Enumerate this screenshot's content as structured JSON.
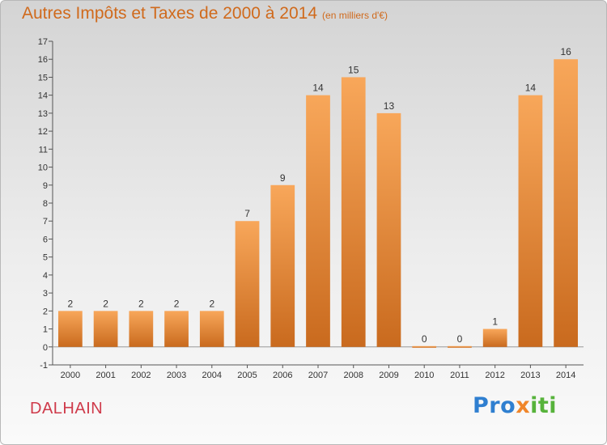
{
  "title": {
    "main": "Autres Impôts et Taxes de 2000 à 2014",
    "unit": "(en milliers d'€)"
  },
  "footer": {
    "town": "DALHAIN",
    "logo_letters": [
      {
        "char": "P",
        "color": "#2f7fd0"
      },
      {
        "char": "r",
        "color": "#2f7fd0"
      },
      {
        "char": "o",
        "color": "#2f7fd0"
      },
      {
        "char": "x",
        "color": "#f0862a"
      },
      {
        "char": "i",
        "color": "#57b33b"
      },
      {
        "char": "t",
        "color": "#57b33b"
      },
      {
        "char": "i",
        "color": "#57b33b"
      }
    ]
  },
  "chart_data": {
    "type": "bar",
    "categories": [
      "2000",
      "2001",
      "2002",
      "2003",
      "2004",
      "2005",
      "2006",
      "2007",
      "2008",
      "2009",
      "2010",
      "2011",
      "2012",
      "2013",
      "2014"
    ],
    "values": [
      2,
      2,
      2,
      2,
      2,
      7,
      9,
      14,
      15,
      13,
      0,
      0,
      1,
      14,
      16
    ],
    "data_labels": [
      "2",
      "2",
      "2",
      "2",
      "2",
      "7",
      "9",
      "14",
      "15",
      "13",
      "0",
      "0",
      "1",
      "14",
      "16"
    ],
    "ylim": [
      -1,
      17
    ],
    "yticks": [
      -1,
      0,
      1,
      2,
      3,
      4,
      5,
      6,
      7,
      8,
      9,
      10,
      11,
      12,
      13,
      14,
      15,
      16,
      17
    ],
    "xlabel": "",
    "ylabel": "",
    "grid": false,
    "bar_color": "#f0862a"
  }
}
